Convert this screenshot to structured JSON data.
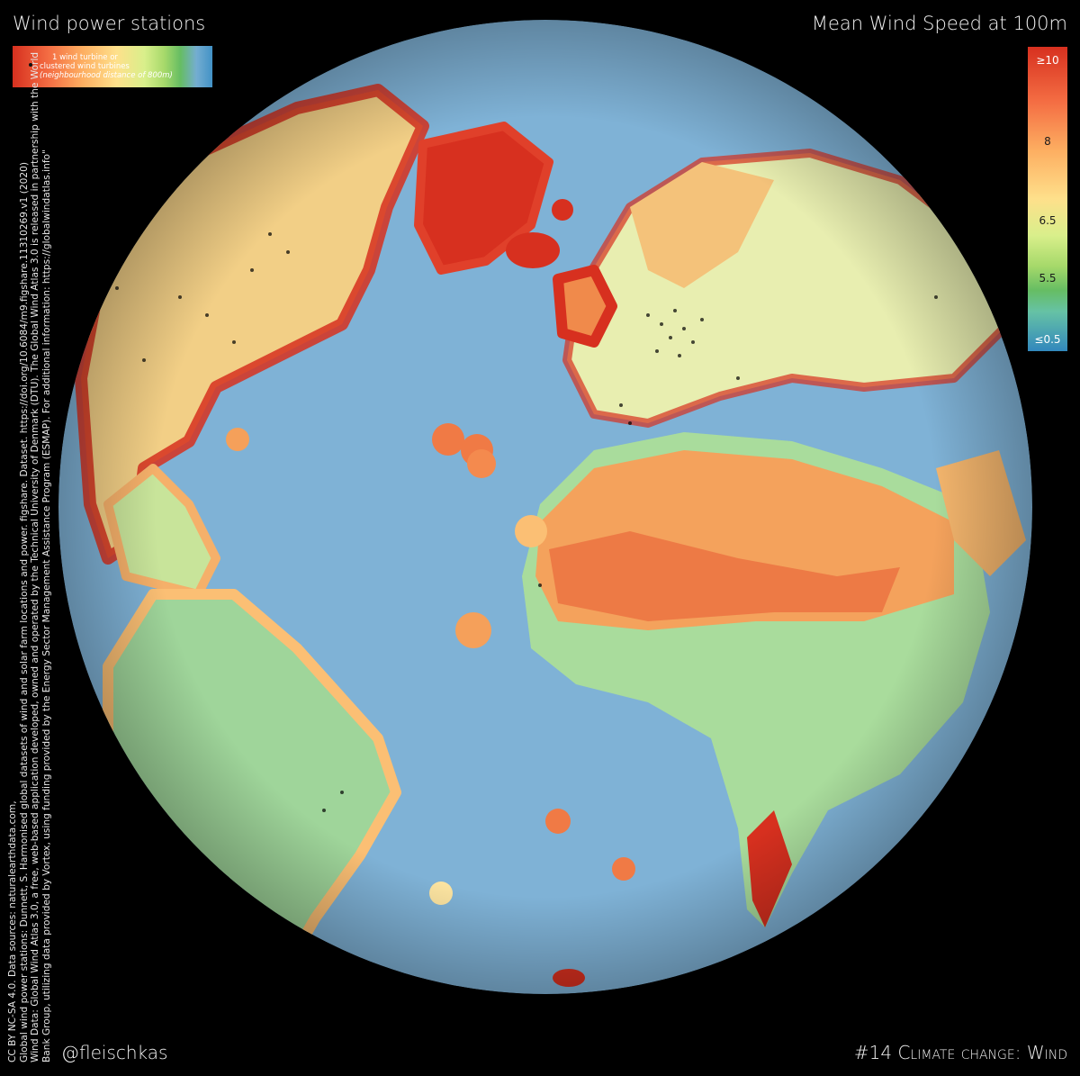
{
  "title_left": "Wind power stations",
  "title_right": "Mean Wind Speed at 100m",
  "legend": {
    "line1": "1 wind turbine or",
    "line2": "clustered wind turbines",
    "line3": "(neighbourhood distance of 800m)"
  },
  "scale": {
    "ticks": [
      "≥10",
      "8",
      "6.5",
      "5.5",
      "≤0.5"
    ],
    "colors": [
      "#d7301f",
      "#f46d43",
      "#fdae61",
      "#fee08b",
      "#d9ef8b",
      "#a6d96a",
      "#66bd63",
      "#3288bd"
    ]
  },
  "credits": [
    "CC BY NC-SA 4.0. Data sources: naturalearthdata.com,",
    "Global wind power stations: Dunnett, S. Harmonised global datasets of wind and solar farm locations and power. figshare. Dataset. https://doi.org/10.6084/m9.figshare.11310269.v1 (2020)",
    "Wind Data: Global Wind Atlas 3.0, a free, web-based application developed, owned and operated by the Technical University of Denmark (DTU). The Global Wind Atlas 3.0 is released in partnership with the World",
    "Bank Group, utilizing data provided by Vortex, using funding provided by the Energy Sector Management Assistance Program (ESMAP). For additional information: https://globalwindatlas.info\""
  ],
  "footer": {
    "handle": "@fleischkas",
    "theme": "#14 Climate change: Wind"
  },
  "map_colors": {
    "ocean": "#7fb2d6",
    "land_low": "#8fcf9a",
    "land_mid": "#f4e9a0",
    "land_high": "#f39c5a",
    "coast_high": "#d7301f",
    "turbines": "#000000"
  }
}
